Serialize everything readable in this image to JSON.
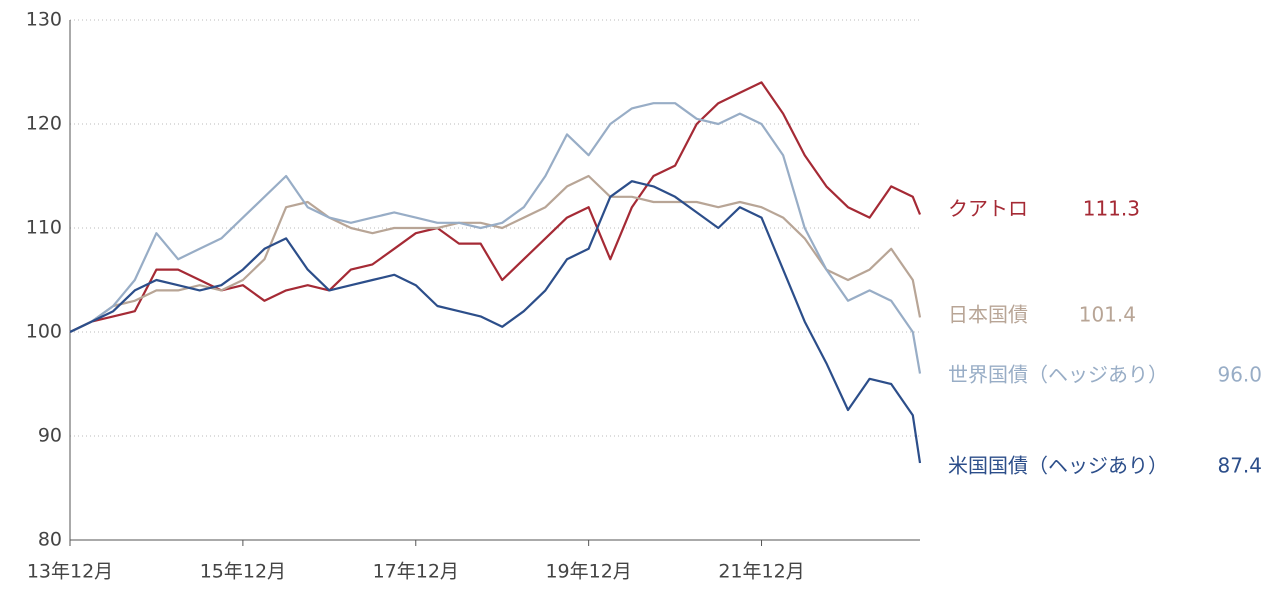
{
  "chart_data": {
    "type": "line",
    "x": [
      "2013-12",
      "2014-03",
      "2014-06",
      "2014-09",
      "2014-12",
      "2015-03",
      "2015-06",
      "2015-09",
      "2015-12",
      "2016-03",
      "2016-06",
      "2016-09",
      "2016-12",
      "2017-03",
      "2017-06",
      "2017-09",
      "2017-12",
      "2018-03",
      "2018-06",
      "2018-09",
      "2018-12",
      "2019-03",
      "2019-06",
      "2019-09",
      "2019-12",
      "2020-03",
      "2020-06",
      "2020-09",
      "2020-12",
      "2021-03",
      "2021-06",
      "2021-09",
      "2021-12",
      "2022-03",
      "2022-06",
      "2022-09",
      "2022-12",
      "2023-03",
      "2023-06",
      "2023-09",
      "2023-10"
    ],
    "series": [
      {
        "name": "クアトロ",
        "color": "#a52a35",
        "end_label": "111.3",
        "values": [
          100,
          101,
          101.5,
          102,
          106,
          106,
          105,
          104,
          104.5,
          103,
          104,
          104.5,
          104,
          106,
          106.5,
          108,
          109.5,
          110,
          108.5,
          108.5,
          105,
          107,
          109,
          111,
          112,
          107,
          112,
          115,
          116,
          120,
          122,
          123,
          124,
          121,
          117,
          114,
          112,
          111,
          114,
          113,
          111.3
        ]
      },
      {
        "name": "日本国債",
        "color": "#b8a596",
        "end_label": "101.4",
        "values": [
          100,
          101,
          102.5,
          103,
          104,
          104,
          104.5,
          104,
          105,
          107,
          112,
          112.5,
          111,
          110,
          109.5,
          110,
          110,
          110,
          110.5,
          110.5,
          110,
          111,
          112,
          114,
          115,
          113,
          113,
          112.5,
          112.5,
          112.5,
          112,
          112.5,
          112,
          111,
          109,
          106,
          105,
          106,
          108,
          105,
          101.4
        ]
      },
      {
        "name": "世界国債（ヘッジあり）",
        "color": "#98adc6",
        "end_label": "96.0",
        "values": [
          100,
          101,
          102.5,
          105,
          109.5,
          107,
          108,
          109,
          111,
          113,
          115,
          112,
          111,
          110.5,
          111,
          111.5,
          111,
          110.5,
          110.5,
          110,
          110.5,
          112,
          115,
          119,
          117,
          120,
          121.5,
          122,
          122,
          120.5,
          120,
          121,
          120,
          117,
          110,
          106,
          103,
          104,
          103,
          100,
          96.0
        ]
      },
      {
        "name": "米国国債（ヘッジあり）",
        "color": "#2c4e8a",
        "end_label": "87.4",
        "values": [
          100,
          101,
          102,
          104,
          105,
          104.5,
          104,
          104.5,
          106,
          108,
          109,
          106,
          104,
          104.5,
          105,
          105.5,
          104.5,
          102.5,
          102,
          101.5,
          100.5,
          102,
          104,
          107,
          108,
          113,
          114.5,
          114,
          113,
          111.5,
          110,
          112,
          111,
          106,
          101,
          97,
          92.5,
          95.5,
          95,
          92,
          87.4
        ]
      }
    ],
    "xlim": [
      "2013-12",
      "2023-10"
    ],
    "xticks": [
      {
        "value": "2013-12",
        "label": "13年12月"
      },
      {
        "value": "2015-12",
        "label": "15年12月"
      },
      {
        "value": "2017-12",
        "label": "17年12月"
      },
      {
        "value": "2019-12",
        "label": "19年12月"
      },
      {
        "value": "2021-12",
        "label": "21年12月"
      }
    ],
    "ylim": [
      80,
      130
    ],
    "yticks": [
      80,
      90,
      100,
      110,
      120,
      130
    ],
    "grid": true
  }
}
